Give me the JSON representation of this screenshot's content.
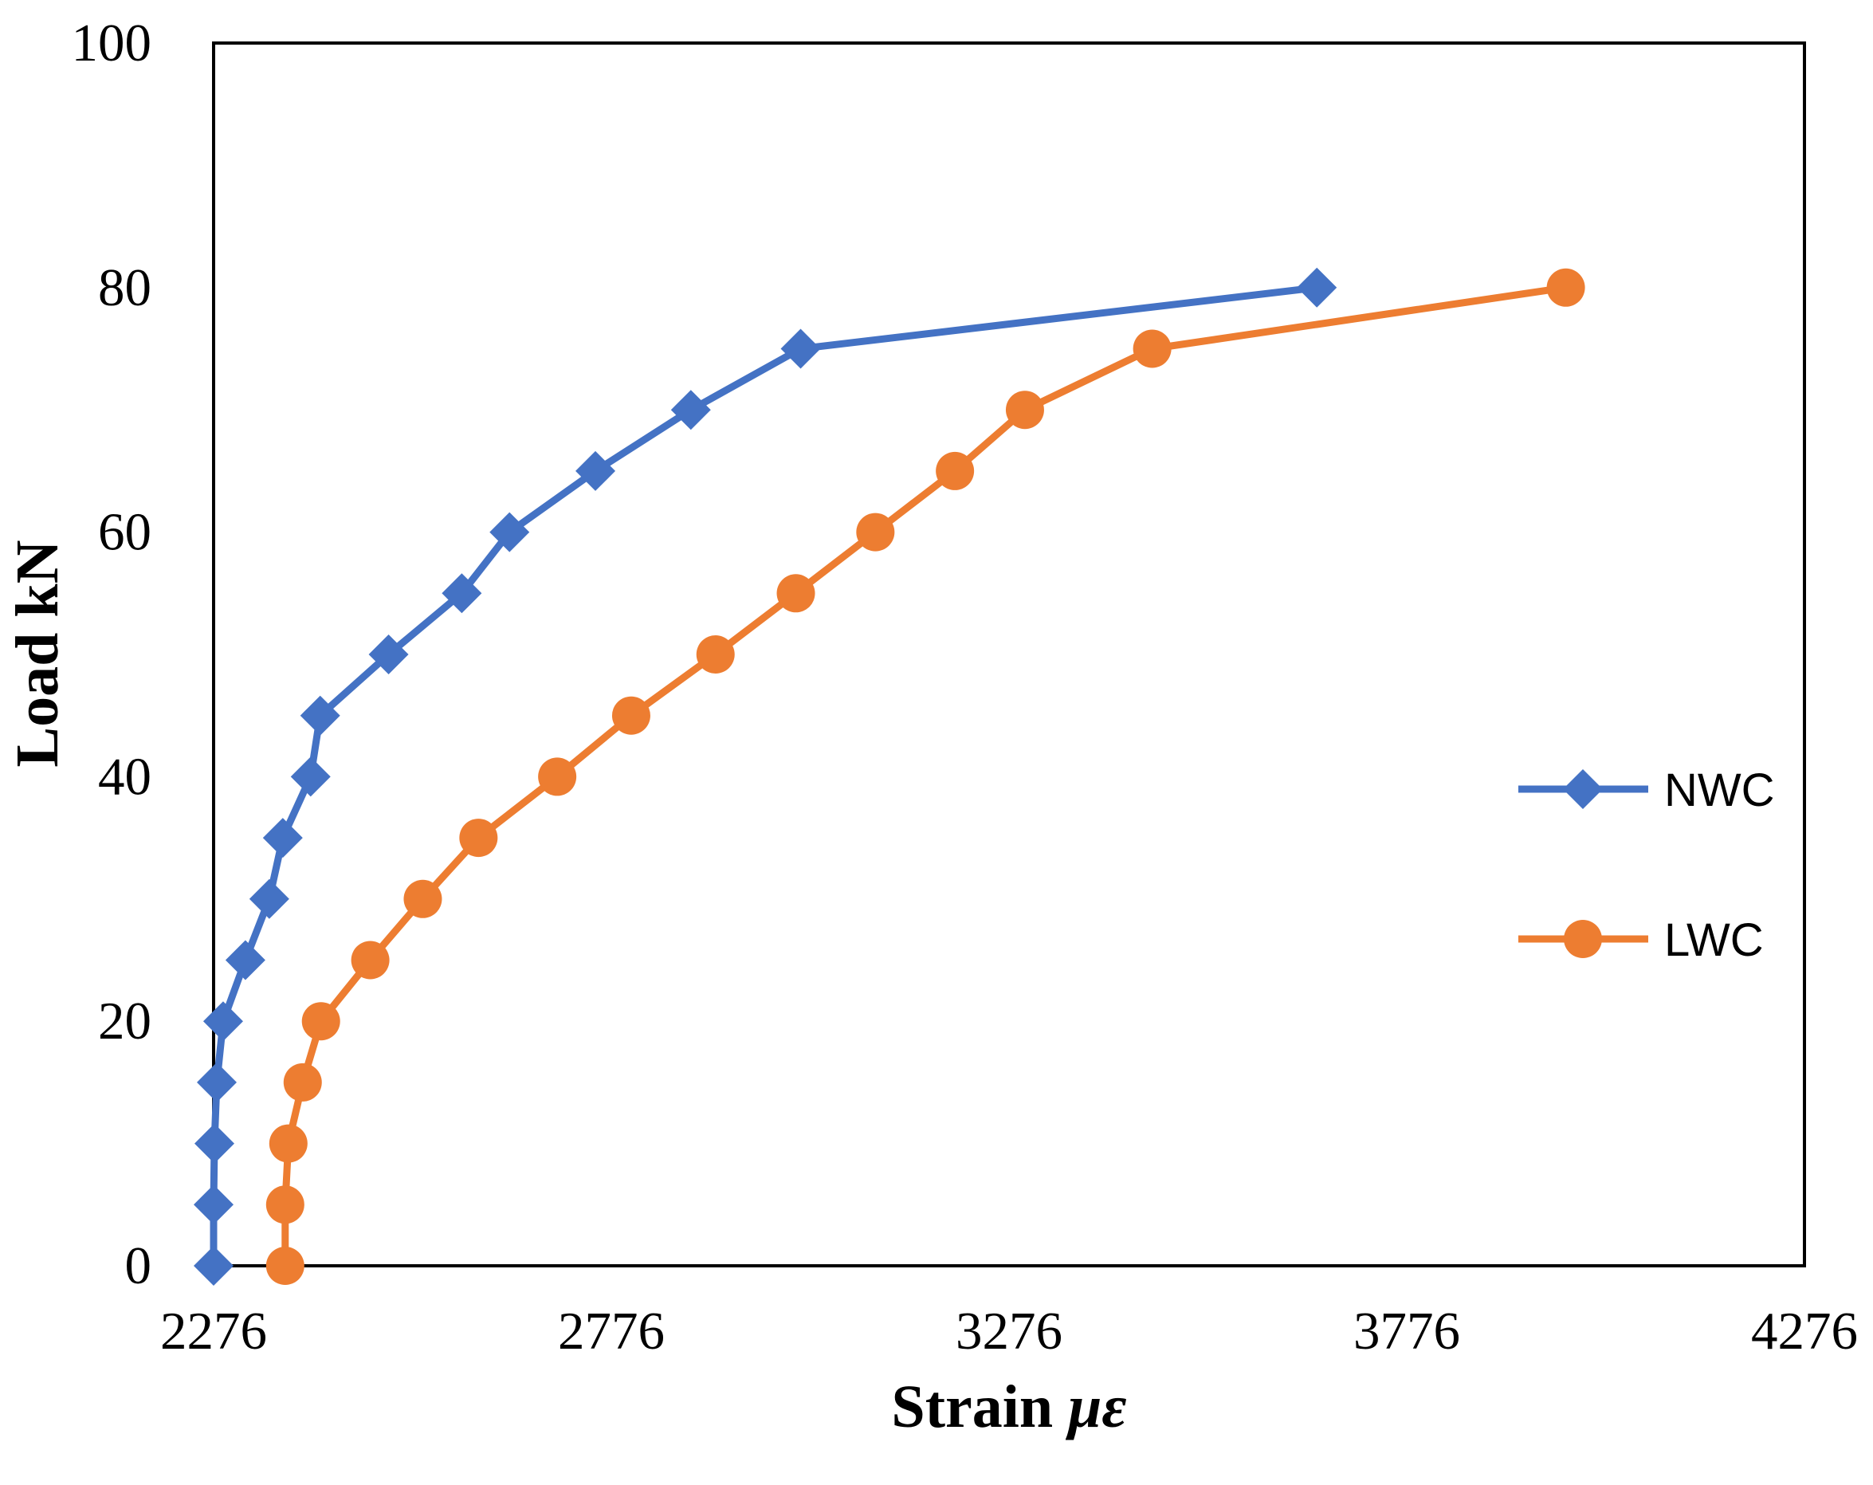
{
  "chart_data": {
    "type": "line",
    "xlabel": "Strain",
    "xlabel_symbol": "με",
    "ylabel": "Load kN",
    "xlim": [
      2276,
      4276
    ],
    "ylim": [
      0,
      100
    ],
    "x_ticks": [
      "2276",
      "2776",
      "3276",
      "3776",
      "4276"
    ],
    "y_ticks": [
      "0",
      "20",
      "40",
      "60",
      "80",
      "100"
    ],
    "grid": false,
    "legend_position": "right",
    "series": [
      {
        "name": "NWC",
        "color": "#4472C4",
        "marker": "diamond",
        "points": [
          [
            2276,
            0
          ],
          [
            2276,
            5
          ],
          [
            2277,
            10
          ],
          [
            2280,
            15
          ],
          [
            2288,
            20
          ],
          [
            2316,
            25
          ],
          [
            2346,
            30
          ],
          [
            2363,
            35
          ],
          [
            2398,
            40
          ],
          [
            2410,
            45
          ],
          [
            2496,
            50
          ],
          [
            2588,
            55
          ],
          [
            2648,
            60
          ],
          [
            2756,
            65
          ],
          [
            2876,
            70
          ],
          [
            3014,
            75
          ],
          [
            3663,
            80
          ]
        ]
      },
      {
        "name": "LWC",
        "color": "#ED7D31",
        "marker": "circle",
        "points": [
          [
            2366,
            0
          ],
          [
            2366,
            5
          ],
          [
            2370,
            10
          ],
          [
            2388,
            15
          ],
          [
            2411,
            20
          ],
          [
            2473,
            25
          ],
          [
            2539,
            30
          ],
          [
            2609,
            35
          ],
          [
            2708,
            40
          ],
          [
            2801,
            45
          ],
          [
            2907,
            50
          ],
          [
            3008,
            55
          ],
          [
            3108,
            60
          ],
          [
            3208,
            65
          ],
          [
            3296,
            70
          ],
          [
            3456,
            75
          ],
          [
            3976,
            80
          ]
        ]
      }
    ]
  }
}
